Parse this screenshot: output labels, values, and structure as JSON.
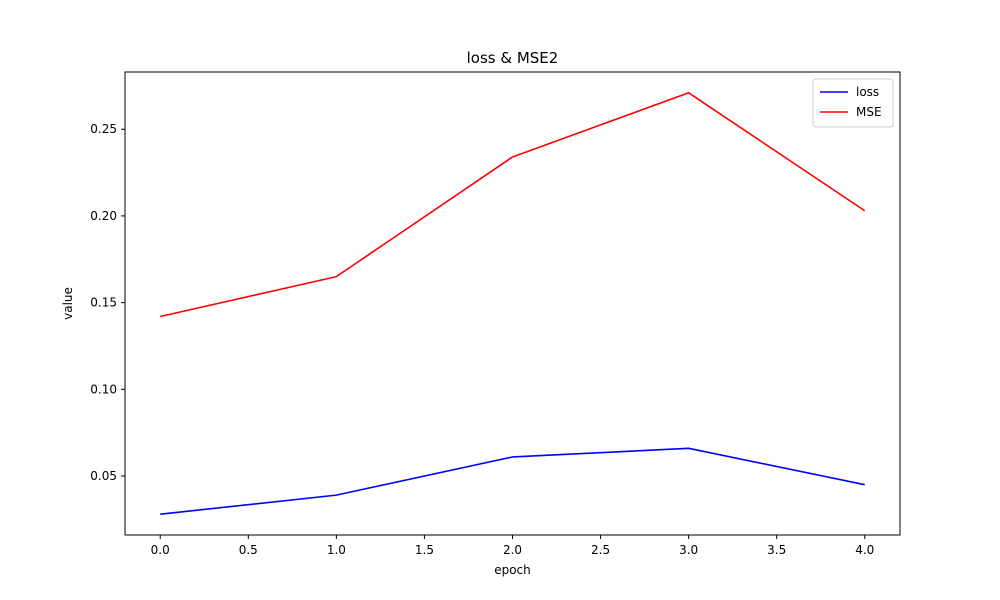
{
  "chart_data": {
    "type": "line",
    "title": "loss & MSE2",
    "xlabel": "epoch",
    "ylabel": "value",
    "x": [
      0,
      1,
      2,
      3,
      4
    ],
    "xlim": [
      -0.2,
      4.2
    ],
    "ylim": [
      0.016,
      0.283
    ],
    "xticks": [
      0.0,
      0.5,
      1.0,
      1.5,
      2.0,
      2.5,
      3.0,
      3.5,
      4.0
    ],
    "xtick_labels": [
      "0.0",
      "0.5",
      "1.0",
      "1.5",
      "2.0",
      "2.5",
      "3.0",
      "3.5",
      "4.0"
    ],
    "yticks": [
      0.05,
      0.1,
      0.15,
      0.2,
      0.25
    ],
    "ytick_labels": [
      "0.05",
      "0.10",
      "0.15",
      "0.20",
      "0.25"
    ],
    "grid": false,
    "legend_position": "top-right",
    "series": [
      {
        "name": "loss",
        "color": "#0000ff",
        "values": [
          0.028,
          0.039,
          0.061,
          0.066,
          0.045
        ]
      },
      {
        "name": "MSE",
        "color": "#ff0000",
        "values": [
          0.142,
          0.165,
          0.234,
          0.271,
          0.203
        ]
      }
    ]
  }
}
